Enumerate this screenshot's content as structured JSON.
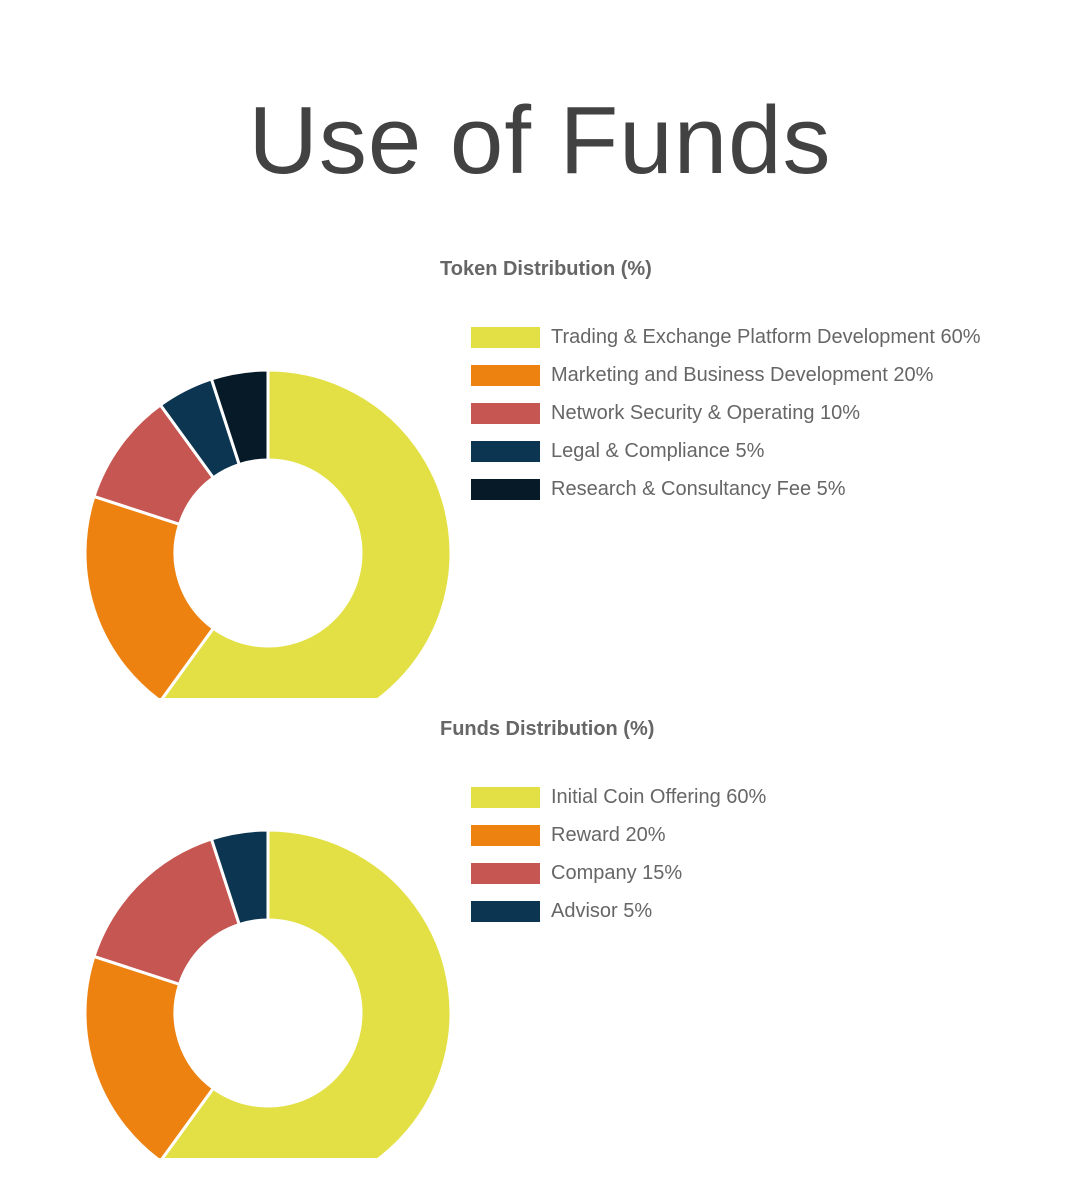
{
  "page": {
    "title": "Use of Funds"
  },
  "colors": {
    "yellow": "#E3E045",
    "orange": "#EE8211",
    "red": "#C65651",
    "navy": "#0B3550",
    "black": "#071A27"
  },
  "chart_data": [
    {
      "type": "pie",
      "style": "donut",
      "title": "Token Distribution (%)",
      "legend_position": "right",
      "slices": [
        {
          "label": "Trading & Exchange Platform Development 60%",
          "value": 60,
          "color": "#E3E045"
        },
        {
          "label": "Marketing and Business Development 20%",
          "value": 20,
          "color": "#EE8211"
        },
        {
          "label": "Network Security & Operating 10%",
          "value": 10,
          "color": "#C65651"
        },
        {
          "label": "Legal & Compliance 5%",
          "value": 5,
          "color": "#0B3550"
        },
        {
          "label": "Research & Consultancy Fee 5%",
          "value": 5,
          "color": "#071A27"
        }
      ]
    },
    {
      "type": "pie",
      "style": "donut",
      "title": "Funds Distribution (%)",
      "legend_position": "right",
      "slices": [
        {
          "label": "Initial Coin Offering 60%",
          "value": 60,
          "color": "#E3E045"
        },
        {
          "label": "Reward 20%",
          "value": 20,
          "color": "#EE8211"
        },
        {
          "label": "Company 15%",
          "value": 15,
          "color": "#C65651"
        },
        {
          "label": "Advisor 5%",
          "value": 5,
          "color": "#0B3550"
        }
      ]
    }
  ]
}
